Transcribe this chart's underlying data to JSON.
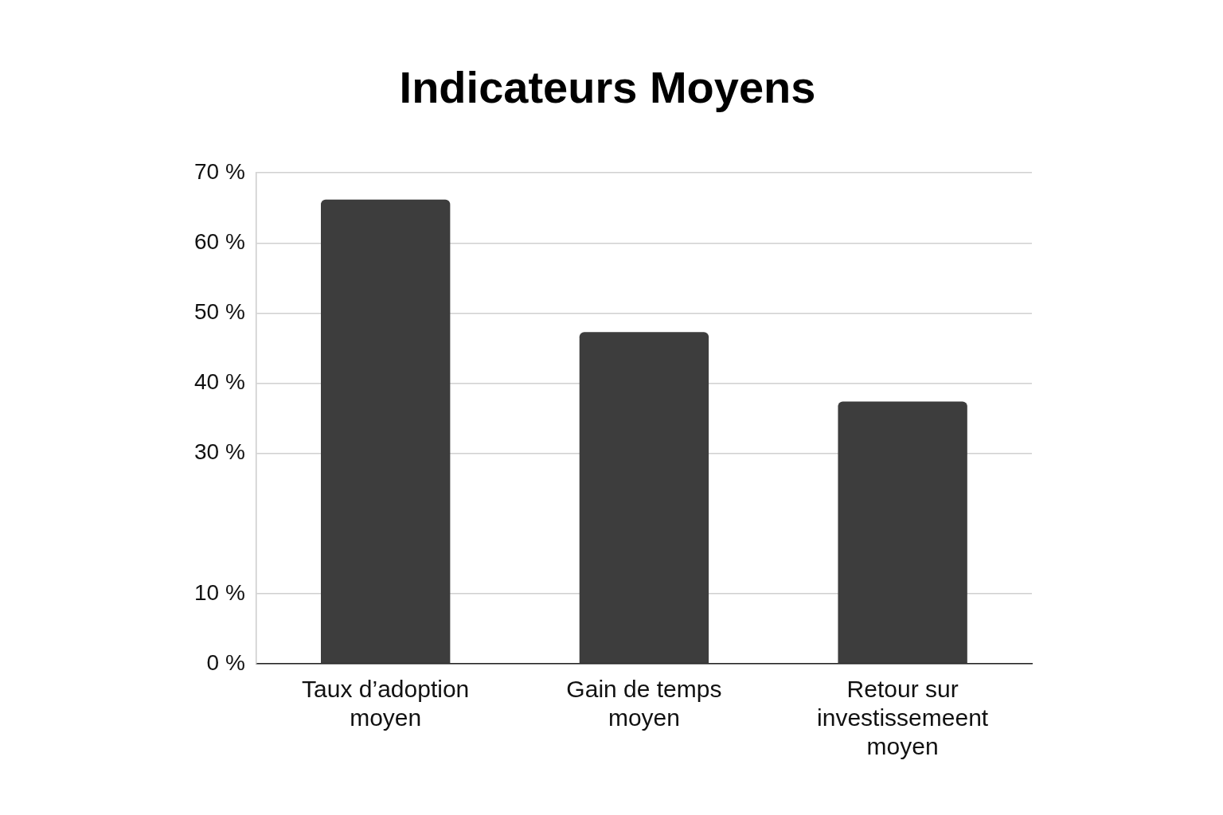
{
  "chart_data": {
    "type": "bar",
    "title": "Indicateurs Moyens",
    "categories": [
      "Taux d’adoption moyen",
      "Gain de temps moyen",
      "Retour sur investissemeent moyen"
    ],
    "values": [
      66.2,
      47.3,
      37.4
    ],
    "color": "#3d3d3d",
    "ylim": [
      0,
      70
    ],
    "yticks": [
      {
        "value": 0,
        "label": "0 %"
      },
      {
        "value": 10,
        "label": "10 %"
      },
      {
        "value": 30,
        "label": "30 %"
      },
      {
        "value": 40,
        "label": "40 %"
      },
      {
        "value": 50,
        "label": "50 %"
      },
      {
        "value": 60,
        "label": "60 %"
      },
      {
        "value": 70,
        "label": "70 %"
      }
    ],
    "grid": "y",
    "legend": false
  }
}
